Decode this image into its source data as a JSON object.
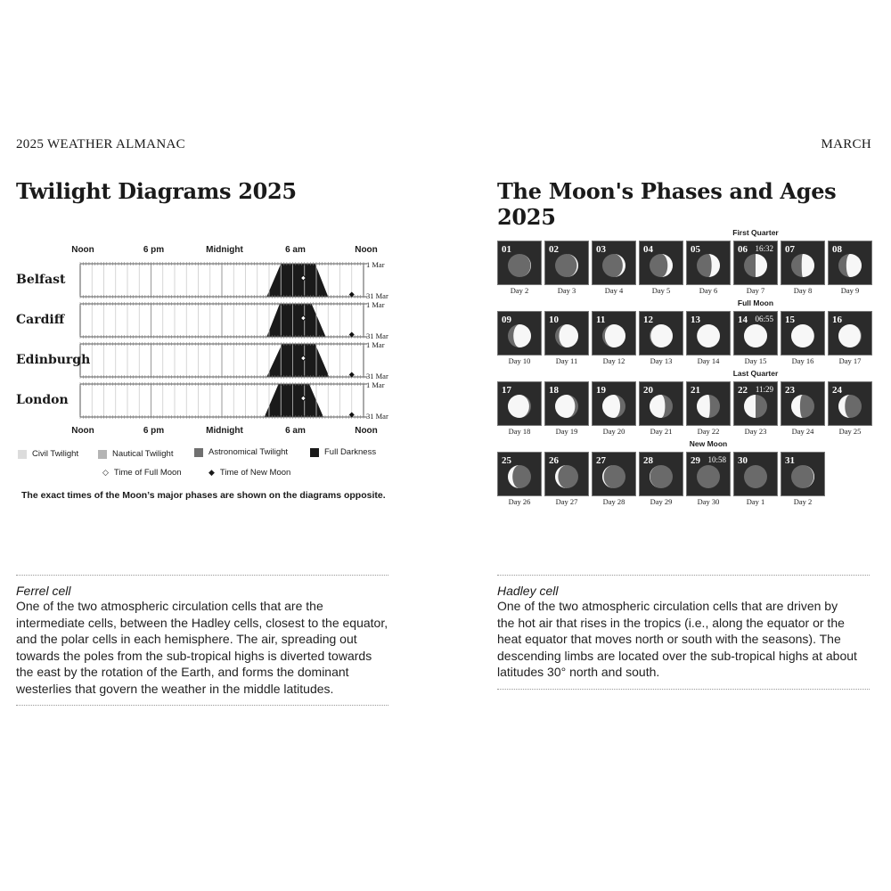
{
  "header": {
    "left": "2025 WEATHER ALMANAC",
    "right": "MARCH"
  },
  "twilight": {
    "title": "Twilight Diagrams 2025",
    "time_labels": [
      "Noon",
      "6 pm",
      "Midnight",
      "6 am",
      "Noon"
    ],
    "date_top": "1 Mar",
    "date_bottom": "31 Mar",
    "cities": [
      {
        "name": "Belfast",
        "dark_start": [
          19.9,
          21.0
        ],
        "dark_end": [
          17.0,
          15.8
        ]
      },
      {
        "name": "Cardiff",
        "dark_start": [
          19.6,
          20.8
        ],
        "dark_end": [
          16.9,
          15.8
        ]
      },
      {
        "name": "Edinburgh",
        "dark_start": [
          19.9,
          21.1
        ],
        "dark_end": [
          17.1,
          15.8
        ]
      },
      {
        "name": "London",
        "dark_start": [
          19.4,
          20.6
        ],
        "dark_end": [
          16.8,
          15.6
        ]
      }
    ],
    "full_moon": {
      "day": 14,
      "hour": 18.9
    },
    "new_moon": {
      "day": 29,
      "hour": 23.0
    },
    "legend": {
      "civil": "Civil Twilight",
      "nautical": "Nautical Twilight",
      "astronomical": "Astronomical Twilight",
      "darkness": "Full Darkness",
      "full_moon": "Time of Full Moon",
      "new_moon": "Time of New Moon"
    },
    "colors": {
      "civil": "#dcdcdc",
      "nautical": "#b4b4b4",
      "astronomical": "#707070",
      "darkness": "#1a1a1a"
    },
    "caption": "The exact times of the Moon’s major phases are shown on the diagrams opposite."
  },
  "moon": {
    "title": "The Moon's Phases and Ages 2025",
    "phases": [
      {
        "label": "First Quarter",
        "date": 6
      },
      {
        "label": "Full Moon",
        "date": 14
      },
      {
        "label": "Last Quarter",
        "date": 22
      },
      {
        "label": "New Moon",
        "date": 29
      }
    ],
    "days": [
      {
        "num": "01",
        "age": "Day 2",
        "lit": 0.02,
        "side": "right"
      },
      {
        "num": "02",
        "age": "Day 3",
        "lit": 0.06,
        "side": "right"
      },
      {
        "num": "03",
        "age": "Day 4",
        "lit": 0.12,
        "side": "right"
      },
      {
        "num": "04",
        "age": "Day 5",
        "lit": 0.22,
        "side": "right"
      },
      {
        "num": "05",
        "age": "Day 6",
        "lit": 0.36,
        "side": "right"
      },
      {
        "num": "06",
        "age": "Day 7",
        "lit": 0.5,
        "side": "right",
        "time": "16:32"
      },
      {
        "num": "07",
        "age": "Day 8",
        "lit": 0.55,
        "side": "right"
      },
      {
        "num": "08",
        "age": "Day 9",
        "lit": 0.66,
        "side": "right"
      },
      {
        "num": "09",
        "age": "Day 10",
        "lit": 0.76,
        "side": "right"
      },
      {
        "num": "10",
        "age": "Day 11",
        "lit": 0.83,
        "side": "right"
      },
      {
        "num": "11",
        "age": "Day 12",
        "lit": 0.89,
        "side": "right"
      },
      {
        "num": "12",
        "age": "Day 13",
        "lit": 0.95,
        "side": "right"
      },
      {
        "num": "13",
        "age": "Day 14",
        "lit": 0.99,
        "side": "right"
      },
      {
        "num": "14",
        "age": "Day 15",
        "lit": 1.0,
        "side": "right",
        "time": "06:55"
      },
      {
        "num": "15",
        "age": "Day 16",
        "lit": 0.99,
        "side": "left"
      },
      {
        "num": "16",
        "age": "Day 17",
        "lit": 0.96,
        "side": "left"
      },
      {
        "num": "17",
        "age": "Day 18",
        "lit": 0.92,
        "side": "left"
      },
      {
        "num": "18",
        "age": "Day 19",
        "lit": 0.86,
        "side": "left"
      },
      {
        "num": "19",
        "age": "Day 20",
        "lit": 0.77,
        "side": "left"
      },
      {
        "num": "20",
        "age": "Day 21",
        "lit": 0.67,
        "side": "left"
      },
      {
        "num": "21",
        "age": "Day 22",
        "lit": 0.57,
        "side": "left"
      },
      {
        "num": "22",
        "age": "Day 23",
        "lit": 0.5,
        "side": "left",
        "time": "11:29"
      },
      {
        "num": "23",
        "age": "Day 24",
        "lit": 0.38,
        "side": "left"
      },
      {
        "num": "24",
        "age": "Day 25",
        "lit": 0.28,
        "side": "left"
      },
      {
        "num": "25",
        "age": "Day 26",
        "lit": 0.2,
        "side": "left"
      },
      {
        "num": "26",
        "age": "Day 27",
        "lit": 0.13,
        "side": "left"
      },
      {
        "num": "27",
        "age": "Day 28",
        "lit": 0.06,
        "side": "left"
      },
      {
        "num": "28",
        "age": "Day 29",
        "lit": 0.02,
        "side": "left"
      },
      {
        "num": "29",
        "age": "Day 30",
        "lit": 0.0,
        "side": "left",
        "time": "10:58"
      },
      {
        "num": "30",
        "age": "Day 1",
        "lit": 0.0,
        "side": "right"
      },
      {
        "num": "31",
        "age": "Day 2",
        "lit": 0.03,
        "side": "right"
      }
    ]
  },
  "glossary": [
    {
      "term": "Ferrel cell",
      "lines": [
        "One of the two atmospheric circulation cells that are the",
        "intermediate cells, between the Hadley cells, closest to the equator,",
        "and the polar cells in each hemisphere. The air, spreading out",
        "towards the poles from the sub-tropical highs is diverted towards",
        "the east by the rotation of the Earth, and forms the dominant",
        "westerlies that govern the weather in the middle latitudes."
      ]
    },
    {
      "term": "Hadley cell",
      "lines": [
        "One of the two atmospheric circulation cells that are driven by",
        "the hot air that rises in the tropics (i.e., along the equator or the",
        "heat equator that moves north or south with the seasons). The",
        "descending limbs are located over the sub-tropical highs at about",
        "latitudes 30° north and south."
      ]
    }
  ]
}
